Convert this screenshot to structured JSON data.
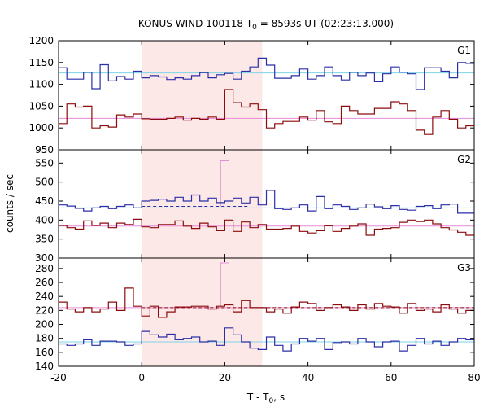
{
  "chart_data": {
    "type": "line",
    "title_main": "KONUS-WIND 100118 T",
    "title_sub": "0",
    "title_rest": " = 8593s UT (02:23:13.000)",
    "xlabel_main": "T - T",
    "xlabel_sub": "0",
    "xlabel_rest": ", s",
    "ylabel": "counts / sec",
    "xlim": [
      -20,
      80
    ],
    "xticks": [
      -20,
      0,
      20,
      40,
      60,
      80
    ],
    "highlight_interval": [
      0,
      29
    ],
    "colors": {
      "highlight": "#fde8e8",
      "blue_series": "#2b2fa6",
      "red_series": "#8b0c0c",
      "blue_background": "#7fd3e6",
      "red_background": "#e68ad8",
      "spike": "#e28fd6"
    },
    "panels": [
      {
        "name": "G1",
        "ylim": [
          950,
          1200
        ],
        "yticks": [
          950,
          1000,
          1050,
          1100,
          1150,
          1200
        ],
        "background_levels": {
          "blue": 1126,
          "red": 1022
        },
        "bin_edges": [
          -20,
          -18,
          -16,
          -14,
          -12,
          -10,
          -8,
          -6,
          -4,
          -2,
          0,
          2,
          4,
          6,
          8,
          10,
          12,
          14,
          16,
          18,
          20,
          22,
          24,
          26,
          28,
          30,
          32,
          34,
          36,
          38,
          40,
          42,
          44,
          46,
          48,
          50,
          52,
          54,
          56,
          58,
          60,
          62,
          64,
          66,
          68,
          70,
          72,
          74,
          76,
          78,
          80
        ],
        "series": [
          {
            "name": "blue",
            "values": [
              1138,
              1112,
              1112,
              1128,
              1090,
              1145,
              1108,
              1118,
              1112,
              1130,
              1115,
              1120,
              1117,
              1111,
              1115,
              1112,
              1120,
              1127,
              1115,
              1122,
              1125,
              1112,
              1130,
              1140,
              1160,
              1144,
              1114,
              1114,
              1120,
              1135,
              1112,
              1120,
              1140,
              1120,
              1110,
              1128,
              1120,
              1126,
              1106,
              1124,
              1140,
              1128,
              1124,
              1088,
              1138,
              1138,
              1130,
              1115,
              1150,
              1148
            ]
          },
          {
            "name": "red",
            "values": [
              1010,
              1055,
              1048,
              1050,
              1000,
              1005,
              1002,
              1030,
              1025,
              1032,
              1021,
              1020,
              1020,
              1022,
              1025,
              1018,
              1022,
              1020,
              1025,
              1020,
              1088,
              1058,
              1048,
              1055,
              1042,
              1000,
              1010,
              1015,
              1015,
              1025,
              1018,
              1040,
              1014,
              1010,
              1050,
              1040,
              1032,
              1032,
              1045,
              1045,
              1060,
              1055,
              1040,
              995,
              985,
              1025,
              1040,
              1020,
              1000,
              1005
            ]
          }
        ]
      },
      {
        "name": "G2",
        "ylim": [
          300,
          585
        ],
        "yticks": [
          300,
          350,
          400,
          450,
          500,
          550
        ],
        "background_levels": {
          "blue": 432,
          "red": 384
        },
        "dashed_level": 436,
        "spike": {
          "x": [
            19,
            21
          ],
          "value": 556
        },
        "bin_edges": [
          -20,
          -18,
          -16,
          -14,
          -12,
          -10,
          -8,
          -6,
          -4,
          -2,
          0,
          2,
          4,
          6,
          8,
          10,
          12,
          14,
          16,
          18,
          20,
          22,
          24,
          26,
          28,
          30,
          32,
          34,
          36,
          38,
          40,
          42,
          44,
          46,
          48,
          50,
          52,
          54,
          56,
          58,
          60,
          62,
          64,
          66,
          68,
          70,
          72,
          74,
          76,
          78,
          80
        ],
        "series": [
          {
            "name": "blue",
            "values": [
              440,
              437,
              431,
              424,
              432,
              436,
              430,
              436,
              440,
              432,
              450,
              452,
              455,
              450,
              460,
              450,
              466,
              450,
              458,
              446,
              450,
              458,
              445,
              460,
              440,
              478,
              430,
              428,
              432,
              440,
              424,
              462,
              430,
              440,
              436,
              428,
              432,
              442,
              435,
              430,
              438,
              428,
              426,
              436,
              438,
              430,
              440,
              442,
              418,
              418
            ]
          },
          {
            "name": "red",
            "values": [
              386,
              380,
              376,
              398,
              386,
              392,
              380,
              392,
              388,
              402,
              382,
              380,
              388,
              388,
              398,
              384,
              378,
              392,
              382,
              372,
              400,
              370,
              395,
              380,
              388,
              376,
              376,
              378,
              384,
              370,
              366,
              372,
              385,
              370,
              378,
              384,
              390,
              360,
              376,
              378,
              380,
              394,
              400,
              396,
              400,
              390,
              380,
              374,
              368,
              360
            ]
          }
        ]
      },
      {
        "name": "G3",
        "ylim": [
          140,
          295
        ],
        "yticks": [
          140,
          160,
          180,
          200,
          220,
          240,
          260,
          280
        ],
        "background_levels": {
          "blue": 175,
          "red": 224
        },
        "dashed_level": 224,
        "spike": {
          "x": [
            19,
            21
          ],
          "value": 288
        },
        "bin_edges": [
          -20,
          -18,
          -16,
          -14,
          -12,
          -10,
          -8,
          -6,
          -4,
          -2,
          0,
          2,
          4,
          6,
          8,
          10,
          12,
          14,
          16,
          18,
          20,
          22,
          24,
          26,
          28,
          30,
          32,
          34,
          36,
          38,
          40,
          42,
          44,
          46,
          48,
          50,
          52,
          54,
          56,
          58,
          60,
          62,
          64,
          66,
          68,
          70,
          72,
          74,
          76,
          78,
          80
        ],
        "series": [
          {
            "name": "blue",
            "values": [
              172,
              170,
              172,
              178,
              170,
              176,
              176,
              175,
              170,
              172,
              190,
              185,
              182,
              186,
              178,
              180,
              182,
              175,
              176,
              170,
              195,
              185,
              175,
              166,
              164,
              182,
              170,
              162,
              172,
              180,
              176,
              180,
              164,
              174,
              175,
              172,
              180,
              175,
              168,
              175,
              176,
              162,
              170,
              180,
              172,
              176,
              170,
              175,
              180,
              178
            ]
          },
          {
            "name": "red",
            "values": [
              232,
              222,
              218,
              224,
              218,
              222,
              232,
              220,
              252,
              226,
              212,
              226,
              210,
              218,
              225,
              225,
              226,
              226,
              222,
              226,
              228,
              218,
              234,
              224,
              224,
              218,
              222,
              216,
              225,
              232,
              230,
              220,
              224,
              228,
              225,
              220,
              228,
              222,
              230,
              226,
              225,
              216,
              230,
              220,
              222,
              218,
              228,
              222,
              216,
              220
            ]
          }
        ]
      }
    ]
  }
}
